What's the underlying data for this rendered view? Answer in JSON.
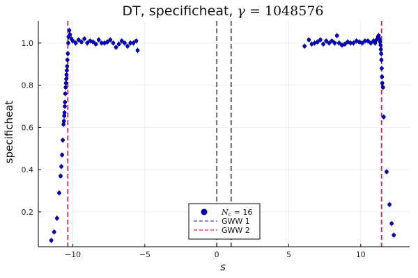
{
  "chart_data": {
    "type": "scatter",
    "title_prefix": "DT, specificheat, ",
    "title_gamma": "γ",
    "title_eq": " = 1048576",
    "xlabel": "s",
    "ylabel": "specificheat",
    "xlim": [
      -12.4,
      13.4
    ],
    "ylim": [
      0.035,
      1.105
    ],
    "xticks": [
      -10,
      -5,
      0,
      5,
      10
    ],
    "xtick_labels": [
      "−10",
      "−5",
      "0",
      "5",
      "10"
    ],
    "yticks": [
      0.2,
      0.4,
      0.6,
      0.8,
      1.0
    ],
    "ytick_labels": [
      "0.2",
      "0.4",
      "0.6",
      "0.8",
      "1.0"
    ],
    "grid": true,
    "legend_position": "bottom-center",
    "colors": {
      "points": "#0000cc",
      "gww1": "#5566ff",
      "gww2": "#ee4455",
      "marker_line_gww1": "#3344dd",
      "marker_line_gww2": "#cc2255",
      "center_lines": "#000000"
    },
    "vertical_lines": {
      "dashed_black": [
        0,
        1
      ],
      "gww_left": -10.35,
      "gww_right": 11.45
    },
    "series": [
      {
        "name_symbol": "N",
        "name_subscript": "c",
        "name_suffix": " = 16",
        "points": [
          [
            -11.5,
            0.065
          ],
          [
            -11.3,
            0.105
          ],
          [
            -11.1,
            0.17
          ],
          [
            -10.95,
            0.29
          ],
          [
            -10.85,
            0.37
          ],
          [
            -10.8,
            0.415
          ],
          [
            -10.75,
            0.47
          ],
          [
            -10.7,
            0.54
          ],
          [
            -10.65,
            0.615
          ],
          [
            -10.62,
            0.63
          ],
          [
            -10.6,
            0.655
          ],
          [
            -10.58,
            0.67
          ],
          [
            -10.56,
            0.7
          ],
          [
            -10.55,
            0.72
          ],
          [
            -10.53,
            0.76
          ],
          [
            -10.5,
            0.79
          ],
          [
            -10.48,
            0.81
          ],
          [
            -10.46,
            0.83
          ],
          [
            -10.44,
            0.85
          ],
          [
            -10.42,
            0.87
          ],
          [
            -10.4,
            0.89
          ],
          [
            -10.38,
            0.92
          ],
          [
            -10.35,
            0.95
          ],
          [
            -10.32,
            1.0
          ],
          [
            -10.3,
            1.03
          ],
          [
            -10.25,
            1.06
          ],
          [
            -10.2,
            1.04
          ],
          [
            -10.1,
            1.02
          ],
          [
            -10.0,
            1.01
          ],
          [
            -9.8,
            1.0
          ],
          [
            -9.6,
            1.015
          ],
          [
            -9.4,
            1.005
          ],
          [
            -9.2,
            1.02
          ],
          [
            -9.0,
            1.0
          ],
          [
            -8.8,
            1.01
          ],
          [
            -8.6,
            1.005
          ],
          [
            -8.4,
            0.995
          ],
          [
            -8.2,
            1.015
          ],
          [
            -8.0,
            1.0
          ],
          [
            -7.8,
            1.0
          ],
          [
            -7.6,
            1.005
          ],
          [
            -7.4,
            1.015
          ],
          [
            -7.2,
            1.0
          ],
          [
            -7.0,
            0.98
          ],
          [
            -6.8,
            0.995
          ],
          [
            -6.6,
            1.01
          ],
          [
            -6.4,
            1.0
          ],
          [
            -6.2,
            0.985
          ],
          [
            -6.0,
            1.0
          ],
          [
            -5.8,
            1.0
          ],
          [
            -5.6,
            1.01
          ],
          [
            -5.5,
            0.965
          ],
          [
            6.1,
            0.985
          ],
          [
            6.4,
            1.015
          ],
          [
            6.6,
            0.995
          ],
          [
            6.8,
            1.0
          ],
          [
            7.0,
            1.005
          ],
          [
            7.2,
            1.015
          ],
          [
            7.4,
            0.995
          ],
          [
            7.6,
            1.01
          ],
          [
            7.8,
            1.0
          ],
          [
            8.0,
            1.01
          ],
          [
            8.2,
            1.0
          ],
          [
            8.35,
            1.035
          ],
          [
            8.5,
            1.0
          ],
          [
            8.7,
            0.99
          ],
          [
            8.9,
            0.995
          ],
          [
            9.1,
            1.005
          ],
          [
            9.3,
            1.0
          ],
          [
            9.5,
            1.0
          ],
          [
            9.7,
            1.01
          ],
          [
            9.9,
            1.005
          ],
          [
            10.1,
            1.0
          ],
          [
            10.3,
            1.01
          ],
          [
            10.5,
            1.01
          ],
          [
            10.7,
            1.0
          ],
          [
            10.9,
            1.01
          ],
          [
            11.0,
            1.0
          ],
          [
            11.1,
            1.015
          ],
          [
            11.2,
            1.03
          ],
          [
            11.25,
            1.035
          ],
          [
            11.3,
            1.02
          ],
          [
            11.35,
            1.005
          ],
          [
            11.38,
            0.99
          ],
          [
            11.4,
            0.97
          ],
          [
            11.42,
            0.95
          ],
          [
            11.44,
            0.92
          ],
          [
            11.46,
            0.88
          ],
          [
            11.48,
            0.84
          ],
          [
            11.5,
            0.81
          ],
          [
            11.55,
            0.79
          ],
          [
            11.6,
            0.65
          ],
          [
            11.8,
            0.39
          ],
          [
            12.0,
            0.235
          ],
          [
            12.15,
            0.145
          ],
          [
            12.3,
            0.09
          ]
        ]
      }
    ],
    "legend": [
      {
        "kind": "marker",
        "symbol": "N",
        "subscript": "c",
        "suffix": " = 16"
      },
      {
        "kind": "dash",
        "label": "GWW 1"
      },
      {
        "kind": "dash",
        "label": "GWW 2"
      }
    ]
  }
}
